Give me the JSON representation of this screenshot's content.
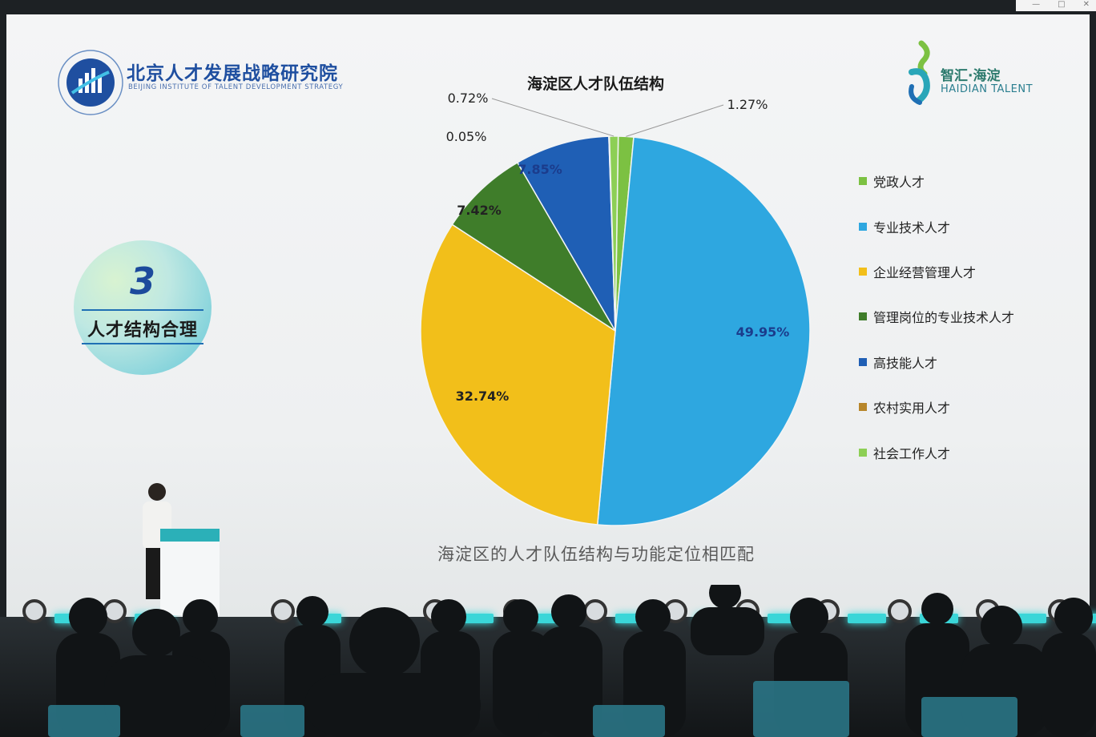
{
  "slide": {
    "institute": {
      "name_cn": "北京人才发展战略研究院",
      "name_en": "BEIJING INSTITUTE OF TALENT DEVELOPMENT STRATEGY"
    },
    "partner": {
      "name_cn": "智汇·海淀",
      "name_en": "HAIDIAN TALENT"
    },
    "badge": {
      "number": "3",
      "text": "人才结构合理"
    },
    "caption": "海淀区的人才队伍结构与功能定位相匹配"
  },
  "chart_data": {
    "type": "pie",
    "title": "海淀区人才队伍结构",
    "categories": [
      "党政人才",
      "专业技术人才",
      "企业经营管理人才",
      "管理岗位的专业技术人才",
      "高技能人才",
      "农村实用人才",
      "社会工作人才"
    ],
    "values": [
      1.27,
      49.95,
      32.74,
      7.42,
      7.85,
      0.05,
      0.72
    ],
    "labels": [
      "1.27%",
      "49.95%",
      "32.74%",
      "7.42%",
      "7.85%",
      "0.05%",
      "0.72%"
    ],
    "colors": [
      "#7cc142",
      "#2ea7e0",
      "#f2bf1a",
      "#3f7d2a",
      "#1f5fb5",
      "#b7862a",
      "#8dcf55"
    ],
    "legend_position": "right"
  }
}
